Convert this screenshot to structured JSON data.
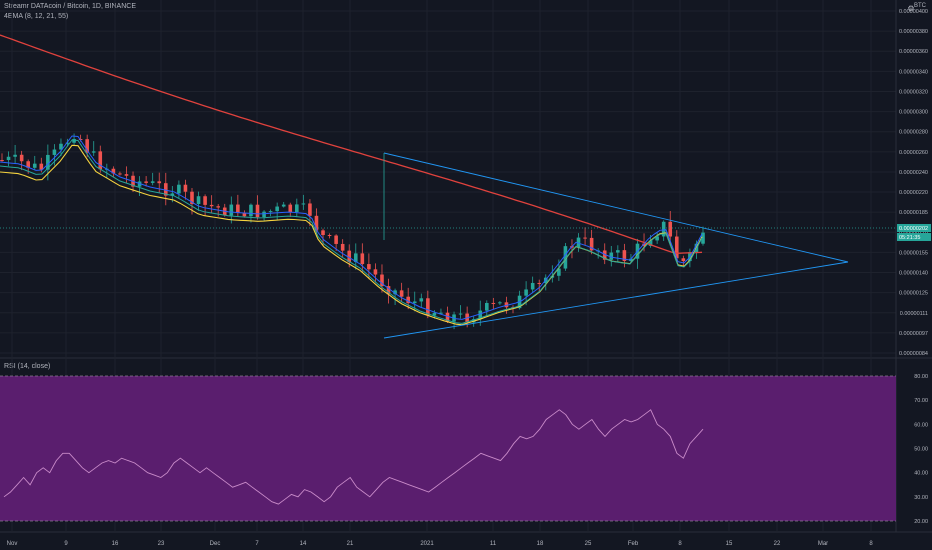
{
  "header": {
    "symbol_line": "Streamr DATAcoin / Bitcoin, 1D, BINANCE",
    "indicator_line": "4EMA (8, 12, 21, 55)",
    "currency": "BTC"
  },
  "rsi_header": "RSI (14, close)",
  "colors": {
    "background": "#131722",
    "up": "#26a69a",
    "down": "#ef5350",
    "ema8": "#2962ff",
    "ema12": "#26a69a",
    "ema21": "#f5d33f",
    "ema55": "#e0423d",
    "trendline": "#2196f3",
    "rsi_band": "#5a1e6e",
    "rsi_line": "#c98bc9"
  },
  "price_axis": {
    "ticks": [
      "0.00000400",
      "0.00000380",
      "0.00000360",
      "0.00000340",
      "0.00000320",
      "0.00000300",
      "0.00000280",
      "0.00000260",
      "0.00000240",
      "0.00000220",
      "0.00000185",
      "0.00000170",
      "0.00000155",
      "0.00000140",
      "0.00000125",
      "0.00000111",
      "0.00000097",
      "0.00000084"
    ],
    "last_price_label": "0.00000202",
    "countdown_label": "05:21:35"
  },
  "rsi_axis": {
    "ticks": [
      "80.00",
      "70.00",
      "60.00",
      "50.00",
      "40.00",
      "30.00",
      "20.00"
    ]
  },
  "time_axis": {
    "labels": [
      "Nov",
      "9",
      "16",
      "23",
      "Dec",
      "7",
      "14",
      "21",
      "2021",
      "11",
      "18",
      "25",
      "Feb",
      "8",
      "15",
      "22",
      "Mar",
      "8"
    ]
  },
  "chart_data": {
    "type": "candlestick",
    "series_shown": [
      "price candles",
      "EMA 8",
      "EMA 12",
      "EMA 21",
      "EMA 55",
      "triangle trendlines",
      "RSI 14"
    ],
    "y_range": [
      8.4e-07,
      4e-06
    ],
    "last_price": 2.02e-06,
    "rsi_bands": [
      20,
      80
    ],
    "rsi_values": [
      30,
      32,
      35,
      38,
      35,
      40,
      42,
      40,
      45,
      48,
      48,
      45,
      42,
      40,
      42,
      44,
      45,
      44,
      46,
      45,
      44,
      42,
      40,
      39,
      38,
      40,
      44,
      46,
      44,
      42,
      40,
      42,
      40,
      38,
      36,
      34,
      35,
      36,
      34,
      32,
      30,
      28,
      27,
      29,
      31,
      30,
      33,
      32,
      30,
      28,
      30,
      34,
      36,
      38,
      34,
      32,
      30,
      33,
      36,
      38,
      37,
      36,
      35,
      34,
      33,
      32,
      34,
      36,
      38,
      40,
      42,
      44,
      46,
      48,
      47,
      46,
      45,
      48,
      52,
      55,
      54,
      55,
      58,
      62,
      64,
      66,
      64,
      60,
      58,
      60,
      62,
      58,
      55,
      58,
      60,
      62,
      61,
      62,
      64,
      66,
      60,
      58,
      55,
      48,
      46,
      52,
      55,
      58
    ]
  }
}
